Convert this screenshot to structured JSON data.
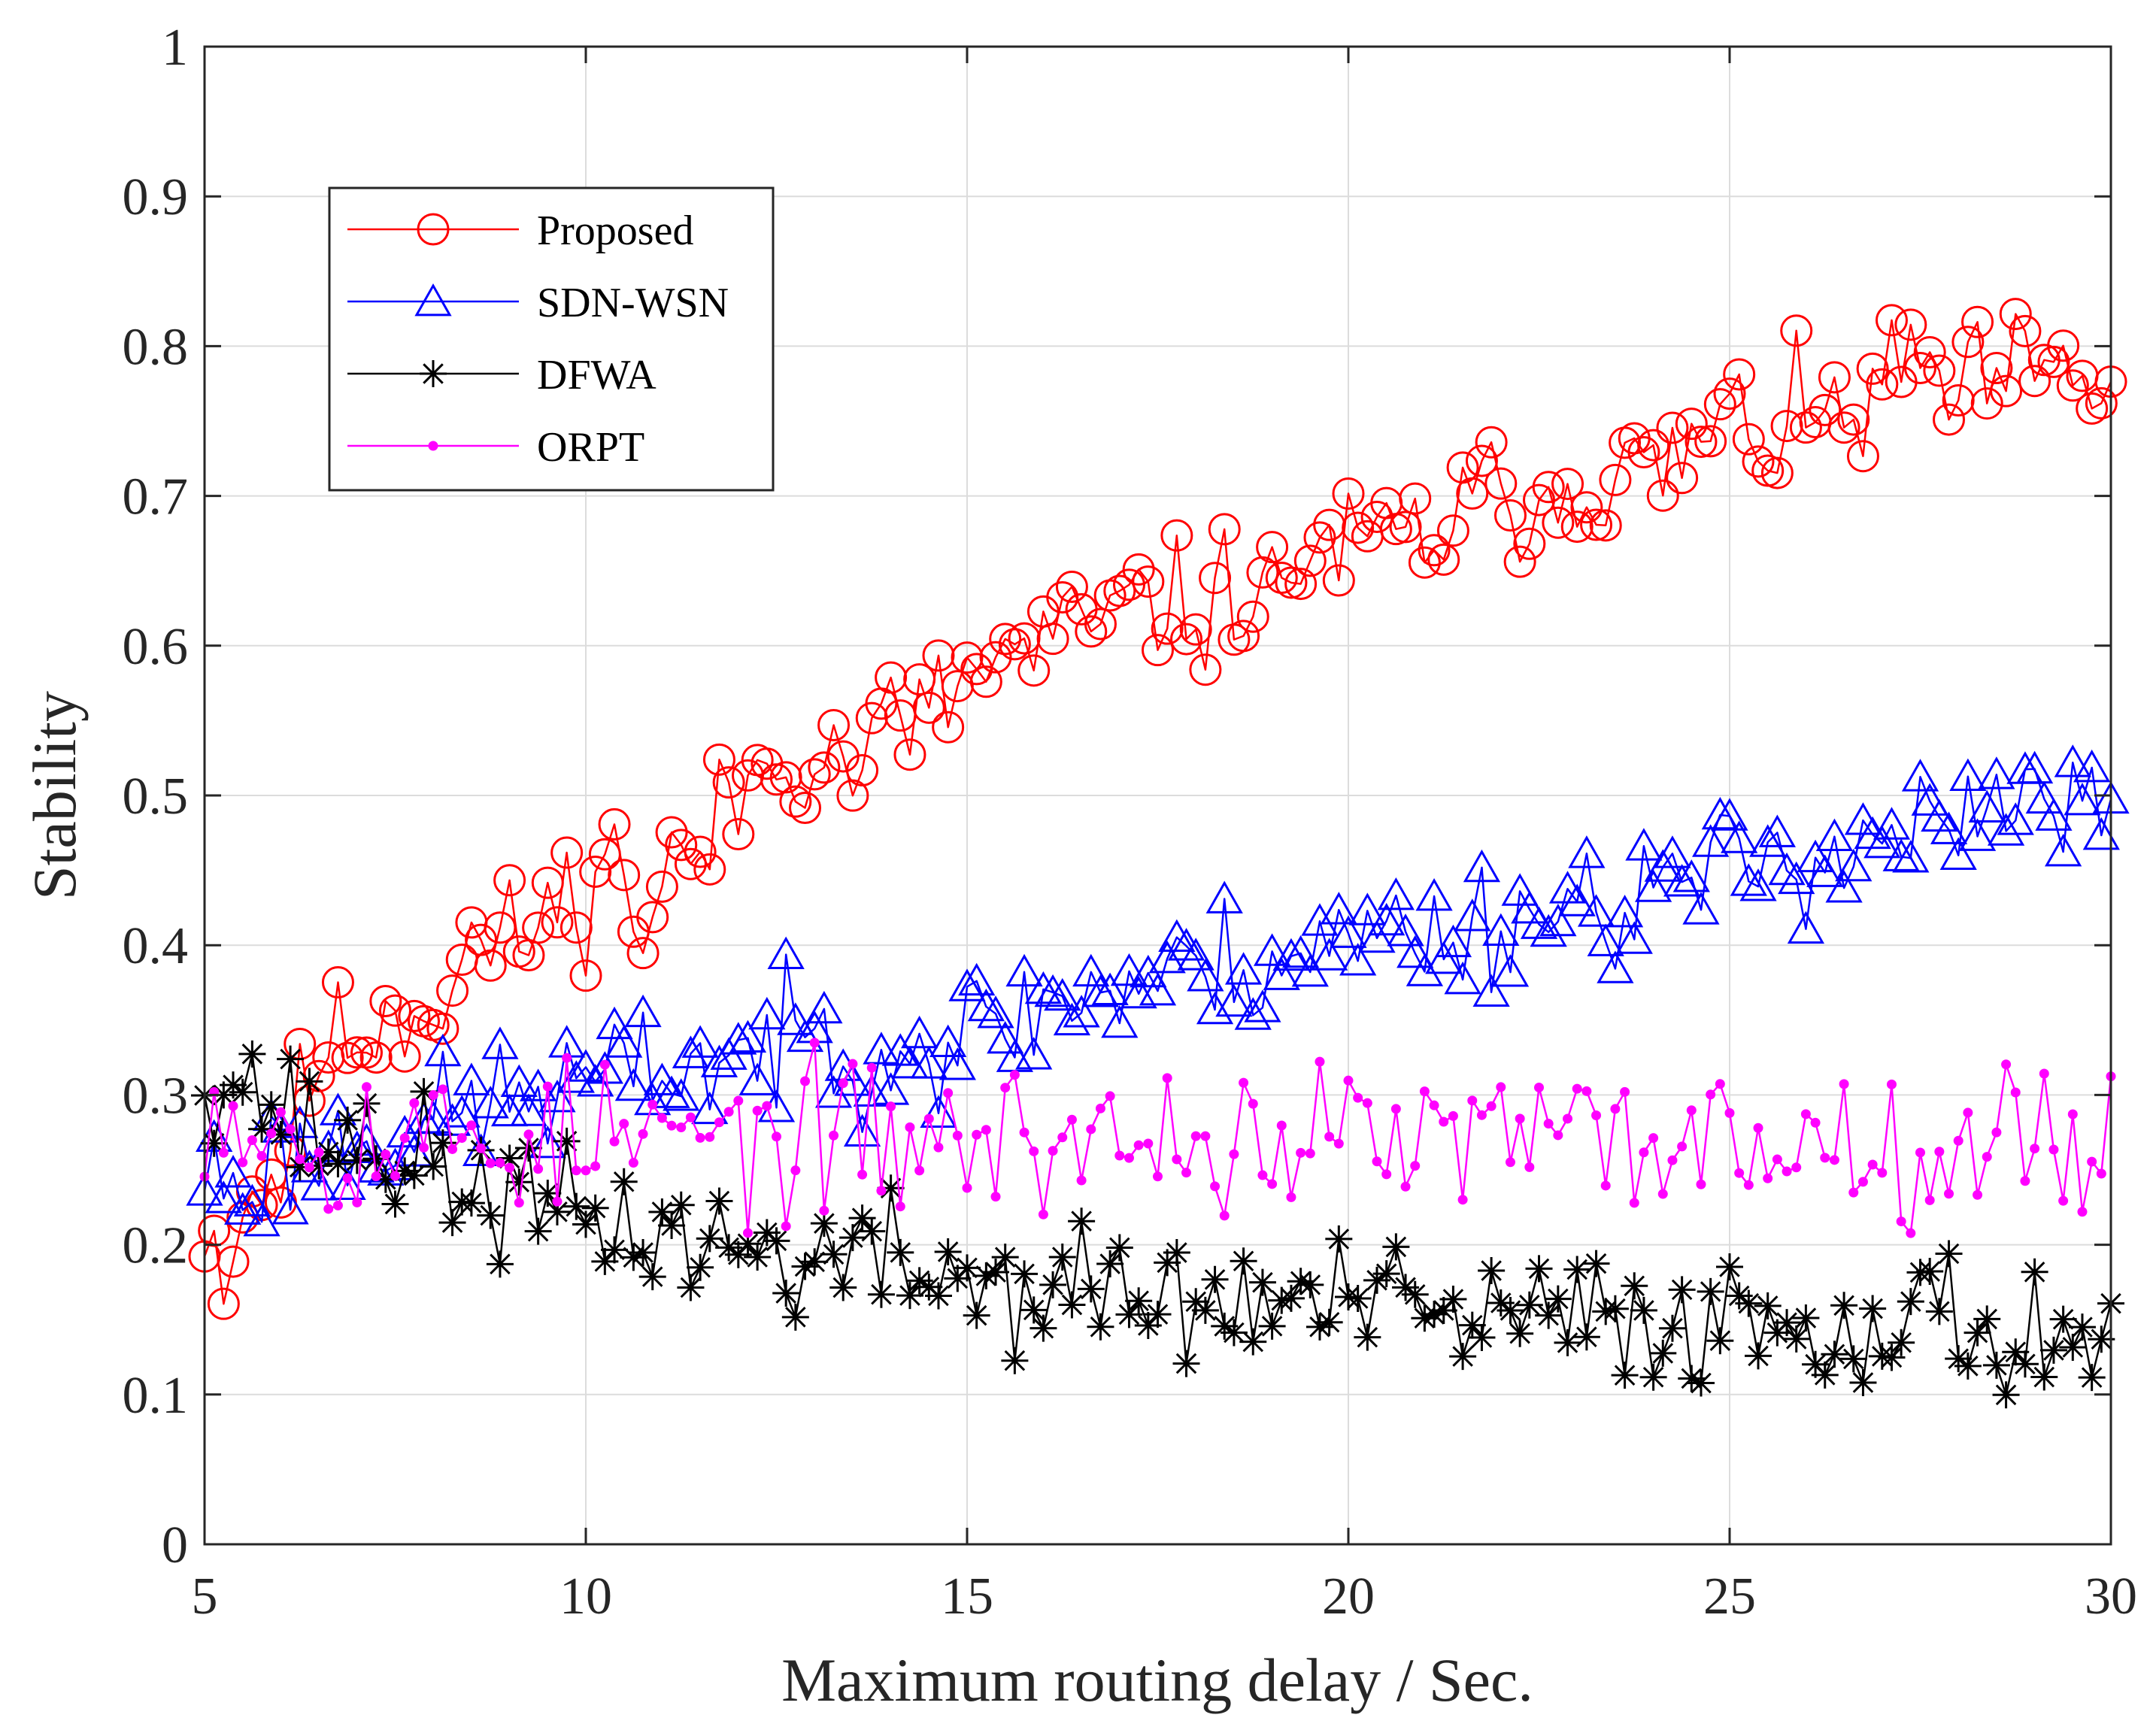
{
  "chart_data": {
    "type": "line",
    "title": "",
    "xlabel": "Maximum routing delay / Sec.",
    "ylabel": "Stability",
    "xlim": [
      5,
      30
    ],
    "ylim": [
      0,
      1
    ],
    "xticks": [
      "5",
      "10",
      "15",
      "20",
      "25",
      "30"
    ],
    "yticks": [
      "0",
      "0.1",
      "0.2",
      "0.3",
      "0.4",
      "0.5",
      "0.6",
      "0.7",
      "0.8",
      "0.9",
      "1"
    ],
    "grid": true,
    "legend_position": "top-left",
    "x_start": 5,
    "x_end": 30,
    "points_per_series": 201,
    "series": [
      {
        "name": "Proposed",
        "color": "#ff0000",
        "marker": "circle",
        "anchors": [
          [
            5.0,
            0.22
          ],
          [
            5.3,
            0.18
          ],
          [
            5.5,
            0.23
          ],
          [
            6.0,
            0.25
          ],
          [
            6.5,
            0.33
          ],
          [
            7.0,
            0.34
          ],
          [
            7.5,
            0.36
          ],
          [
            8.0,
            0.36
          ],
          [
            8.5,
            0.4
          ],
          [
            9.0,
            0.4
          ],
          [
            9.5,
            0.42
          ],
          [
            10.0,
            0.44
          ],
          [
            10.5,
            0.46
          ],
          [
            10.8,
            0.39
          ],
          [
            11.0,
            0.45
          ],
          [
            11.5,
            0.46
          ],
          [
            12.0,
            0.5
          ],
          [
            12.5,
            0.53
          ],
          [
            13.0,
            0.53
          ],
          [
            13.5,
            0.52
          ],
          [
            14.0,
            0.55
          ],
          [
            14.5,
            0.55
          ],
          [
            15.0,
            0.58
          ],
          [
            15.5,
            0.59
          ],
          [
            16.0,
            0.6
          ],
          [
            16.5,
            0.61
          ],
          [
            17.0,
            0.62
          ],
          [
            17.5,
            0.63
          ],
          [
            18.0,
            0.62
          ],
          [
            18.5,
            0.64
          ],
          [
            19.0,
            0.63
          ],
          [
            19.5,
            0.67
          ],
          [
            20.0,
            0.66
          ],
          [
            20.5,
            0.67
          ],
          [
            21.0,
            0.67
          ],
          [
            21.5,
            0.69
          ],
          [
            22.0,
            0.7
          ],
          [
            22.5,
            0.7
          ],
          [
            23.0,
            0.71
          ],
          [
            23.5,
            0.72
          ],
          [
            24.0,
            0.71
          ],
          [
            24.5,
            0.73
          ],
          [
            25.0,
            0.75
          ],
          [
            25.5,
            0.74
          ],
          [
            26.0,
            0.75
          ],
          [
            26.5,
            0.75
          ],
          [
            27.0,
            0.77
          ],
          [
            27.5,
            0.79
          ],
          [
            28.0,
            0.76
          ],
          [
            28.5,
            0.78
          ],
          [
            29.0,
            0.78
          ],
          [
            29.5,
            0.77
          ],
          [
            30.0,
            0.78
          ]
        ],
        "noise": 0.022,
        "seed": 11
      },
      {
        "name": "SDN-WSN",
        "color": "#0000ff",
        "marker": "triangle",
        "anchors": [
          [
            5.0,
            0.25
          ],
          [
            5.5,
            0.24
          ],
          [
            6.0,
            0.26
          ],
          [
            6.5,
            0.26
          ],
          [
            7.0,
            0.27
          ],
          [
            7.5,
            0.28
          ],
          [
            8.0,
            0.28
          ],
          [
            8.5,
            0.29
          ],
          [
            9.0,
            0.3
          ],
          [
            9.5,
            0.3
          ],
          [
            10.0,
            0.31
          ],
          [
            10.5,
            0.31
          ],
          [
            11.0,
            0.32
          ],
          [
            11.5,
            0.32
          ],
          [
            12.0,
            0.33
          ],
          [
            12.5,
            0.33
          ],
          [
            13.0,
            0.34
          ],
          [
            13.5,
            0.33
          ],
          [
            14.0,
            0.34
          ],
          [
            14.5,
            0.33
          ],
          [
            15.0,
            0.34
          ],
          [
            15.5,
            0.35
          ],
          [
            16.0,
            0.36
          ],
          [
            16.5,
            0.37
          ],
          [
            17.0,
            0.37
          ],
          [
            17.5,
            0.38
          ],
          [
            18.0,
            0.38
          ],
          [
            18.5,
            0.39
          ],
          [
            19.0,
            0.39
          ],
          [
            19.5,
            0.4
          ],
          [
            20.0,
            0.4
          ],
          [
            20.5,
            0.41
          ],
          [
            21.0,
            0.41
          ],
          [
            21.5,
            0.41
          ],
          [
            22.0,
            0.42
          ],
          [
            22.5,
            0.42
          ],
          [
            23.0,
            0.43
          ],
          [
            23.5,
            0.43
          ],
          [
            24.0,
            0.44
          ],
          [
            24.5,
            0.44
          ],
          [
            25.0,
            0.45
          ],
          [
            25.5,
            0.46
          ],
          [
            26.0,
            0.46
          ],
          [
            26.5,
            0.47
          ],
          [
            27.0,
            0.47
          ],
          [
            27.5,
            0.48
          ],
          [
            28.0,
            0.47
          ],
          [
            28.5,
            0.49
          ],
          [
            29.0,
            0.49
          ],
          [
            29.5,
            0.49
          ],
          [
            30.0,
            0.49
          ]
        ],
        "noise": 0.022,
        "seed": 23
      },
      {
        "name": "DFWA",
        "color": "#000000",
        "marker": "asterisk",
        "anchors": [
          [
            5.0,
            0.32
          ],
          [
            5.5,
            0.31
          ],
          [
            6.0,
            0.29
          ],
          [
            6.5,
            0.27
          ],
          [
            7.0,
            0.27
          ],
          [
            7.5,
            0.26
          ],
          [
            8.0,
            0.25
          ],
          [
            8.5,
            0.24
          ],
          [
            9.0,
            0.23
          ],
          [
            9.5,
            0.22
          ],
          [
            10.0,
            0.22
          ],
          [
            10.5,
            0.21
          ],
          [
            11.0,
            0.21
          ],
          [
            11.5,
            0.2
          ],
          [
            12.0,
            0.2
          ],
          [
            12.5,
            0.19
          ],
          [
            13.0,
            0.19
          ],
          [
            13.5,
            0.19
          ],
          [
            14.0,
            0.19
          ],
          [
            14.5,
            0.18
          ],
          [
            15.0,
            0.18
          ],
          [
            15.5,
            0.17
          ],
          [
            16.0,
            0.17
          ],
          [
            16.5,
            0.17
          ],
          [
            17.0,
            0.17
          ],
          [
            17.5,
            0.16
          ],
          [
            18.0,
            0.16
          ],
          [
            18.5,
            0.16
          ],
          [
            19.0,
            0.16
          ],
          [
            19.5,
            0.16
          ],
          [
            20.0,
            0.16
          ],
          [
            20.5,
            0.16
          ],
          [
            21.0,
            0.15
          ],
          [
            21.5,
            0.15
          ],
          [
            22.0,
            0.15
          ],
          [
            22.5,
            0.15
          ],
          [
            23.0,
            0.15
          ],
          [
            23.5,
            0.15
          ],
          [
            24.0,
            0.15
          ],
          [
            24.5,
            0.15
          ],
          [
            25.0,
            0.15
          ],
          [
            25.5,
            0.15
          ],
          [
            26.0,
            0.15
          ],
          [
            26.5,
            0.15
          ],
          [
            27.0,
            0.15
          ],
          [
            27.5,
            0.15
          ],
          [
            28.0,
            0.15
          ],
          [
            28.5,
            0.14
          ],
          [
            29.0,
            0.14
          ],
          [
            29.5,
            0.14
          ],
          [
            30.0,
            0.14
          ]
        ],
        "noise": 0.022,
        "seed": 37
      },
      {
        "name": "ORPT",
        "color": "#ff00ff",
        "marker": "dot",
        "anchors": [
          [
            5.0,
            0.3
          ],
          [
            5.5,
            0.29
          ],
          [
            6.0,
            0.28
          ],
          [
            6.5,
            0.27
          ],
          [
            7.0,
            0.27
          ],
          [
            7.5,
            0.27
          ],
          [
            8.0,
            0.27
          ],
          [
            8.5,
            0.27
          ],
          [
            9.0,
            0.27
          ],
          [
            9.5,
            0.27
          ],
          [
            10.0,
            0.27
          ],
          [
            10.5,
            0.27
          ],
          [
            11.0,
            0.27
          ],
          [
            11.5,
            0.27
          ],
          [
            12.0,
            0.27
          ],
          [
            12.5,
            0.27
          ],
          [
            13.0,
            0.27
          ],
          [
            13.5,
            0.27
          ],
          [
            14.0,
            0.27
          ],
          [
            14.5,
            0.27
          ],
          [
            15.0,
            0.27
          ],
          [
            15.5,
            0.27
          ],
          [
            16.0,
            0.27
          ],
          [
            16.5,
            0.27
          ],
          [
            17.0,
            0.27
          ],
          [
            17.5,
            0.27
          ],
          [
            18.0,
            0.27
          ],
          [
            18.5,
            0.27
          ],
          [
            19.0,
            0.27
          ],
          [
            19.5,
            0.27
          ],
          [
            20.0,
            0.27
          ],
          [
            20.5,
            0.27
          ],
          [
            21.0,
            0.27
          ],
          [
            21.5,
            0.27
          ],
          [
            22.0,
            0.27
          ],
          [
            22.5,
            0.27
          ],
          [
            23.0,
            0.27
          ],
          [
            23.5,
            0.27
          ],
          [
            24.0,
            0.27
          ],
          [
            24.5,
            0.27
          ],
          [
            25.0,
            0.27
          ],
          [
            25.5,
            0.27
          ],
          [
            26.0,
            0.27
          ],
          [
            26.5,
            0.27
          ],
          [
            27.0,
            0.27
          ],
          [
            27.5,
            0.27
          ],
          [
            28.0,
            0.27
          ],
          [
            28.5,
            0.27
          ],
          [
            29.0,
            0.27
          ],
          [
            29.5,
            0.27
          ],
          [
            30.0,
            0.27
          ]
        ],
        "noise": 0.026,
        "seed": 53
      }
    ]
  }
}
